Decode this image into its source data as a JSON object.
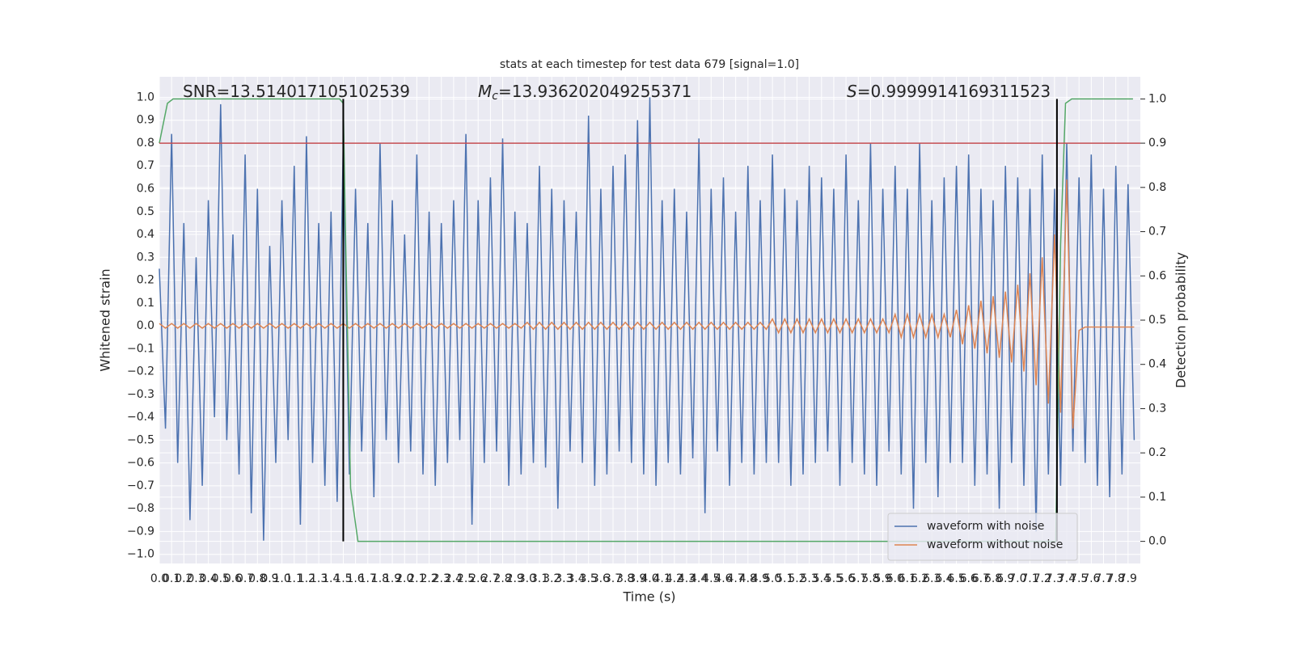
{
  "chart_data": {
    "type": "line",
    "title": "stats at each timestep for test data 679 [signal=1.0]",
    "x_label": "Time (s)",
    "y_label": "Whitened strain",
    "y2_label": "Detection probability",
    "annotations": [
      {
        "text": "SNR=13.514017105102539"
      },
      {
        "symbol": "M",
        "subscript": "c",
        "text": "=13.936202049255371"
      },
      {
        "symbol": "S",
        "text": "=0.9999914169311523"
      }
    ],
    "x": [
      0,
      0.05,
      0.1,
      0.15,
      0.2,
      0.25,
      0.3,
      0.35,
      0.4,
      0.45,
      0.5,
      0.55,
      0.6,
      0.65,
      0.7,
      0.75,
      0.8,
      0.85,
      0.9,
      0.95,
      1,
      1.05,
      1.1,
      1.15,
      1.2,
      1.25,
      1.3,
      1.35,
      1.4,
      1.45,
      1.5,
      1.55,
      1.6,
      1.65,
      1.7,
      1.75,
      1.8,
      1.85,
      1.9,
      1.95,
      2,
      2.05,
      2.1,
      2.15,
      2.2,
      2.25,
      2.3,
      2.35,
      2.4,
      2.45,
      2.5,
      2.55,
      2.6,
      2.65,
      2.7,
      2.75,
      2.8,
      2.85,
      2.9,
      2.95,
      3,
      3.05,
      3.1,
      3.15,
      3.2,
      3.25,
      3.3,
      3.35,
      3.4,
      3.45,
      3.5,
      3.55,
      3.6,
      3.65,
      3.7,
      3.75,
      3.8,
      3.85,
      3.9,
      3.95,
      4,
      4.05,
      4.1,
      4.15,
      4.2,
      4.25,
      4.3,
      4.35,
      4.4,
      4.45,
      4.5,
      4.55,
      4.6,
      4.65,
      4.7,
      4.75,
      4.8,
      4.85,
      4.9,
      4.95,
      5,
      5.05,
      5.1,
      5.15,
      5.2,
      5.25,
      5.3,
      5.35,
      5.4,
      5.45,
      5.5,
      5.55,
      5.6,
      5.65,
      5.7,
      5.75,
      5.8,
      5.85,
      5.9,
      5.95,
      6,
      6.05,
      6.1,
      6.15,
      6.2,
      6.25,
      6.3,
      6.35,
      6.4,
      6.45,
      6.5,
      6.55,
      6.6,
      6.65,
      6.7,
      6.75,
      6.8,
      6.85,
      6.9,
      6.95,
      7,
      7.05,
      7.1,
      7.15,
      7.2,
      7.25,
      7.3,
      7.35,
      7.4,
      7.45,
      7.5,
      7.55,
      7.6,
      7.65,
      7.7,
      7.75,
      7.8,
      7.85,
      7.9,
      7.95
    ],
    "series": [
      {
        "name": "waveform with noise",
        "color": "#4c72b0",
        "values": [
          0.25,
          -0.45,
          0.84,
          -0.6,
          0.45,
          -0.85,
          0.3,
          -0.7,
          0.55,
          -0.4,
          0.97,
          -0.5,
          0.4,
          -0.65,
          0.75,
          -0.82,
          0.6,
          -0.94,
          0.35,
          -0.6,
          0.55,
          -0.5,
          0.7,
          -0.87,
          0.83,
          -0.6,
          0.45,
          -0.7,
          0.5,
          -0.77,
          0.8,
          -0.65,
          0.6,
          -0.55,
          0.45,
          -0.75,
          0.8,
          -0.5,
          0.55,
          -0.6,
          0.4,
          -0.55,
          0.75,
          -0.65,
          0.5,
          -0.7,
          0.45,
          -0.6,
          0.55,
          -0.5,
          0.84,
          -0.87,
          0.55,
          -0.6,
          0.65,
          -0.55,
          0.82,
          -0.7,
          0.5,
          -0.65,
          0.45,
          -0.6,
          0.7,
          -0.62,
          0.6,
          -0.8,
          0.55,
          -0.55,
          0.5,
          -0.6,
          0.92,
          -0.7,
          0.6,
          -0.65,
          0.7,
          -0.55,
          0.75,
          -0.6,
          0.9,
          -0.65,
          1.0,
          -0.7,
          0.55,
          -0.6,
          0.6,
          -0.65,
          0.5,
          -0.58,
          0.82,
          -0.82,
          0.6,
          -0.55,
          0.65,
          -0.7,
          0.5,
          -0.6,
          0.7,
          -0.65,
          0.55,
          -0.6,
          0.75,
          -0.6,
          0.6,
          -0.7,
          0.55,
          -0.65,
          0.7,
          -0.6,
          0.65,
          -0.55,
          0.6,
          -0.7,
          0.75,
          -0.6,
          0.55,
          -0.65,
          0.8,
          -0.7,
          0.6,
          -0.55,
          0.7,
          -0.65,
          0.6,
          -0.8,
          0.8,
          -0.6,
          0.55,
          -0.75,
          0.65,
          -0.6,
          0.7,
          -0.6,
          0.75,
          -0.7,
          0.6,
          -0.65,
          0.55,
          -0.8,
          0.7,
          -0.6,
          0.65,
          -0.7,
          0.6,
          -0.9,
          0.75,
          -0.65,
          0.6,
          -0.7,
          0.8,
          -0.55,
          0.65,
          -0.6,
          0.75,
          -0.7,
          0.6,
          -0.75,
          0.7,
          -0.65,
          0.62,
          -0.5
        ]
      },
      {
        "name": "waveform without noise",
        "color": "#dd8452",
        "values": [
          0.01,
          -0.01,
          0.01,
          -0.01,
          0.01,
          -0.01,
          0.01,
          -0.01,
          0.01,
          -0.01,
          0.01,
          -0.01,
          0.01,
          -0.01,
          0.01,
          -0.01,
          0.01,
          -0.01,
          0.01,
          -0.01,
          0.01,
          -0.01,
          0.01,
          -0.01,
          0.01,
          -0.01,
          0.01,
          -0.01,
          0.01,
          -0.01,
          0.01,
          -0.01,
          0.01,
          -0.01,
          0.01,
          -0.01,
          0.01,
          -0.01,
          0.01,
          -0.01,
          0.01,
          -0.01,
          0.01,
          -0.01,
          0.01,
          -0.01,
          0.01,
          -0.01,
          0.01,
          -0.01,
          0.01,
          -0.01,
          0.01,
          -0.01,
          0.01,
          -0.01,
          0.01,
          -0.01,
          0.01,
          -0.01,
          0.015,
          -0.015,
          0.015,
          -0.015,
          0.015,
          -0.015,
          0.015,
          -0.015,
          0.015,
          -0.015,
          0.015,
          -0.015,
          0.015,
          -0.015,
          0.015,
          -0.015,
          0.015,
          -0.015,
          0.015,
          -0.015,
          0.015,
          -0.015,
          0.015,
          -0.015,
          0.015,
          -0.015,
          0.015,
          -0.015,
          0.015,
          -0.015,
          0.015,
          -0.015,
          0.015,
          -0.015,
          0.015,
          -0.015,
          0.015,
          -0.015,
          0.015,
          -0.015,
          0.03,
          -0.03,
          0.03,
          -0.03,
          0.03,
          -0.03,
          0.03,
          -0.03,
          0.03,
          -0.03,
          0.03,
          -0.03,
          0.03,
          -0.03,
          0.03,
          -0.03,
          0.03,
          -0.03,
          0.03,
          -0.03,
          0.05,
          -0.05,
          0.05,
          -0.05,
          0.05,
          -0.05,
          0.05,
          -0.05,
          0.05,
          -0.05,
          0.07,
          -0.08,
          0.09,
          -0.1,
          0.11,
          -0.12,
          0.13,
          -0.14,
          0.15,
          -0.16,
          0.18,
          -0.2,
          0.23,
          -0.26,
          0.3,
          -0.34,
          0.4,
          -0.38,
          0.64,
          -0.45,
          -0.02,
          -0.005,
          -0.005,
          -0.005,
          -0.005,
          -0.005,
          -0.005,
          -0.005,
          -0.005,
          -0.005
        ]
      },
      {
        "color": "#55a868",
        "axis": "y2",
        "x": [
          0,
          0.066,
          0.112,
          1.47,
          1.5,
          1.52,
          1.56,
          1.62,
          7.31,
          7.35,
          7.39,
          7.44,
          7.94
        ],
        "values": [
          0.9,
          0.99,
          1.0,
          1.0,
          0.99,
          0.67,
          0.12,
          0.0,
          0.0,
          0.67,
          0.99,
          1.0,
          1.0
        ]
      }
    ],
    "hline": {
      "y": 0.9,
      "axis": "y2",
      "color": "#c44e52"
    },
    "vlines": {
      "x": [
        1.5,
        7.32
      ],
      "y2": [
        0,
        1
      ],
      "color": "#000000"
    },
    "xlim": [
      0,
      8.0
    ],
    "xticks": [
      {
        "value": 0,
        "label": "0.0"
      },
      0.1,
      0.2,
      0.3,
      0.4,
      0.5,
      0.6,
      0.7,
      0.8,
      0.9,
      {
        "value": 1,
        "label": "1.0"
      },
      1.1,
      1.2,
      1.3,
      1.4,
      1.5,
      1.6,
      1.7,
      1.8,
      1.9,
      {
        "value": 2,
        "label": "2.0"
      },
      2.1,
      2.2,
      2.3,
      2.4,
      2.5,
      2.6,
      2.7,
      2.8,
      2.9,
      {
        "value": 3,
        "label": "3.0"
      },
      3.1,
      3.2,
      3.3,
      3.4,
      3.5,
      3.6,
      3.7,
      3.8,
      3.9,
      {
        "value": 4,
        "label": "4.0"
      },
      4.1,
      4.2,
      4.3,
      4.4,
      4.5,
      4.6,
      4.7,
      4.8,
      4.9,
      {
        "value": 5,
        "label": "5.0"
      },
      5.1,
      5.2,
      5.3,
      5.4,
      5.5,
      5.6,
      5.7,
      5.8,
      5.9,
      {
        "value": 6,
        "label": "6.0"
      },
      6.1,
      6.2,
      6.3,
      6.4,
      6.5,
      6.6,
      6.7,
      6.8,
      6.9,
      {
        "value": 7,
        "label": "7.0"
      },
      7.1,
      7.2,
      7.3,
      7.4,
      7.5,
      7.6,
      7.7,
      7.8,
      7.9
    ],
    "ylim": [
      -1.04,
      1.09
    ],
    "yticks": [
      {
        "value": -1,
        "label": "−1.0"
      },
      {
        "value": -0.9,
        "label": "−0.9"
      },
      {
        "value": -0.8,
        "label": "−0.8"
      },
      {
        "value": -0.7,
        "label": "−0.7"
      },
      {
        "value": -0.6,
        "label": "−0.6"
      },
      {
        "value": -0.5,
        "label": "−0.5"
      },
      {
        "value": -0.4,
        "label": "−0.4"
      },
      {
        "value": -0.3,
        "label": "−0.3"
      },
      {
        "value": -0.2,
        "label": "−0.2"
      },
      {
        "value": -0.1,
        "label": "−0.1"
      },
      {
        "value": 0,
        "label": "0.0"
      },
      0.1,
      0.2,
      0.3,
      0.4,
      0.5,
      0.6,
      0.7,
      0.8,
      0.9,
      {
        "value": 1,
        "label": "1.0"
      }
    ],
    "y2lim": [
      -0.05,
      1.05
    ],
    "y2ticks": [
      {
        "value": 0,
        "label": "0.0"
      },
      0.1,
      0.2,
      0.3,
      0.4,
      0.5,
      0.6,
      0.7,
      0.8,
      0.9,
      {
        "value": 1,
        "label": "1.0"
      }
    ],
    "grid": true,
    "legend": "lower right",
    "background": "#eaeaf2"
  }
}
